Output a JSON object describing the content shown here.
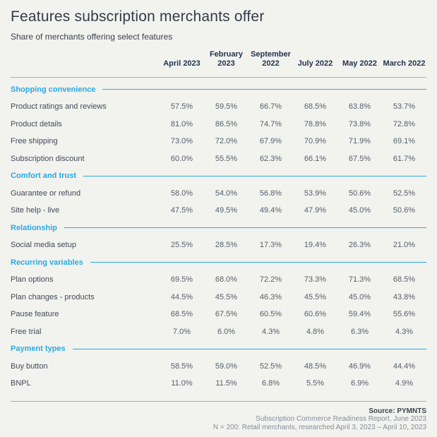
{
  "title": "Features subscription merchants offer",
  "subtitle": "Share of merchants offering select features",
  "colors": {
    "accent_blue": "#29aae2",
    "header_navy": "#24344d",
    "background": "#f2f2ef"
  },
  "chart_data": {
    "type": "table",
    "title": "Features subscription merchants offer",
    "subtitle": "Share of merchants offering select features",
    "columns": [
      "April 2023",
      "February 2023",
      "September 2022",
      "July 2022",
      "May 2022",
      "March 2022"
    ],
    "sections": [
      {
        "label": "Shopping convenience",
        "rows": [
          {
            "label": "Product ratings and reviews",
            "values": [
              "57.5%",
              "59.5%",
              "66.7%",
              "68.5%",
              "63.8%",
              "53.7%"
            ]
          },
          {
            "label": "Product details",
            "values": [
              "81.0%",
              "86.5%",
              "74.7%",
              "78.8%",
              "73.8%",
              "72.8%"
            ]
          },
          {
            "label": "Free shipping",
            "values": [
              "73.0%",
              "72.0%",
              "67.9%",
              "70.9%",
              "71.9%",
              "69.1%"
            ]
          },
          {
            "label": "Subscription discount",
            "values": [
              "60.0%",
              "55.5%",
              "62.3%",
              "66.1%",
              "67.5%",
              "61.7%"
            ]
          }
        ]
      },
      {
        "label": "Comfort and trust",
        "rows": [
          {
            "label": "Guarantee or refund",
            "values": [
              "58.0%",
              "54.0%",
              "56.8%",
              "53.9%",
              "50.6%",
              "52.5%"
            ]
          },
          {
            "label": "Site help - live",
            "values": [
              "47.5%",
              "49.5%",
              "49.4%",
              "47.9%",
              "45.0%",
              "50.6%"
            ]
          }
        ]
      },
      {
        "label": "Relationship",
        "rows": [
          {
            "label": "Social media setup",
            "values": [
              "25.5%",
              "28.5%",
              "17.3%",
              "19.4%",
              "26.3%",
              "21.0%"
            ]
          }
        ]
      },
      {
        "label": "Recurring variables",
        "rows": [
          {
            "label": "Plan options",
            "values": [
              "69.5%",
              "68.0%",
              "72.2%",
              "73.3%",
              "71.3%",
              "68.5%"
            ]
          },
          {
            "label": "Plan changes - products",
            "values": [
              "44.5%",
              "45.5%",
              "46.3%",
              "45.5%",
              "45.0%",
              "43.8%"
            ]
          },
          {
            "label": "Pause feature",
            "values": [
              "68.5%",
              "67.5%",
              "60.5%",
              "60.6%",
              "59.4%",
              "55.6%"
            ]
          },
          {
            "label": "Free trial",
            "values": [
              "7.0%",
              "6.0%",
              "4.3%",
              "4.8%",
              "6.3%",
              "4.3%"
            ]
          }
        ]
      },
      {
        "label": "Payment types",
        "rows": [
          {
            "label": "Buy button",
            "values": [
              "58.5%",
              "59.0%",
              "52.5%",
              "48.5%",
              "46.9%",
              "44.4%"
            ]
          },
          {
            "label": "BNPL",
            "values": [
              "11.0%",
              "11.5%",
              "6.8%",
              "5.5%",
              "6.9%",
              "4.9%"
            ]
          }
        ]
      }
    ]
  },
  "footer": {
    "source": "Source: PYMNTS",
    "line2": "Subscription Commerce Readiness Report, June 2023",
    "line3": "N = 200: Retail merchants, researched April 3, 2023 – April 10, 2023"
  }
}
